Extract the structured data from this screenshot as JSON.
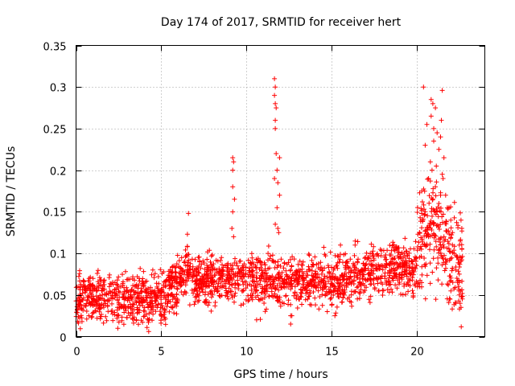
{
  "chart_data": {
    "type": "scatter",
    "title": "Day 174 of 2017, SRMTID for receiver hert",
    "xlabel": "GPS time / hours",
    "ylabel": "SRMTID / TECUs",
    "xlim": [
      0,
      24
    ],
    "ylim": [
      0,
      0.35
    ],
    "xticks": [
      0,
      5,
      10,
      15,
      20
    ],
    "xtick_labels": [
      "0",
      "5",
      "10",
      "15",
      "20"
    ],
    "yticks": [
      0,
      0.05,
      0.1,
      0.15,
      0.2,
      0.25,
      0.3,
      0.35
    ],
    "ytick_labels": [
      "0",
      "0.05",
      "0.1",
      "0.15",
      "0.2",
      "0.25",
      "0.3",
      "0.35"
    ],
    "grid": true,
    "marker": "+",
    "color": "#ff0000",
    "series": [
      {
        "name": "SRMTID",
        "background_profile": [
          [
            0.0,
            0.045
          ],
          [
            0.5,
            0.045
          ],
          [
            1.0,
            0.047
          ],
          [
            2.0,
            0.048
          ],
          [
            3.0,
            0.045
          ],
          [
            3.5,
            0.042
          ],
          [
            4.0,
            0.045
          ],
          [
            4.5,
            0.045
          ],
          [
            5.0,
            0.05
          ],
          [
            5.5,
            0.058
          ],
          [
            6.0,
            0.065
          ],
          [
            6.5,
            0.08
          ],
          [
            7.0,
            0.068
          ],
          [
            8.0,
            0.07
          ],
          [
            9.0,
            0.072
          ],
          [
            10.0,
            0.07
          ],
          [
            11.0,
            0.065
          ],
          [
            12.0,
            0.07
          ],
          [
            13.0,
            0.068
          ],
          [
            14.0,
            0.068
          ],
          [
            15.0,
            0.065
          ],
          [
            16.0,
            0.07
          ],
          [
            17.0,
            0.075
          ],
          [
            18.0,
            0.08
          ],
          [
            19.0,
            0.085
          ],
          [
            19.8,
            0.075
          ],
          [
            20.2,
            0.115
          ],
          [
            20.6,
            0.13
          ],
          [
            21.0,
            0.13
          ],
          [
            21.5,
            0.12
          ],
          [
            22.0,
            0.09
          ],
          [
            22.5,
            0.08
          ],
          [
            22.7,
            0.08
          ]
        ],
        "spread": 0.015,
        "point_count": 2200,
        "random_seed": 174,
        "notable_points": [
          [
            9.2,
            0.215
          ],
          [
            9.25,
            0.21
          ],
          [
            9.2,
            0.2
          ],
          [
            9.2,
            0.18
          ],
          [
            9.3,
            0.165
          ],
          [
            9.2,
            0.15
          ],
          [
            9.15,
            0.13
          ],
          [
            9.25,
            0.12
          ],
          [
            11.65,
            0.31
          ],
          [
            11.7,
            0.3
          ],
          [
            11.65,
            0.29
          ],
          [
            11.7,
            0.28
          ],
          [
            11.75,
            0.275
          ],
          [
            11.7,
            0.26
          ],
          [
            11.7,
            0.25
          ],
          [
            11.75,
            0.22
          ],
          [
            11.95,
            0.215
          ],
          [
            11.8,
            0.2
          ],
          [
            11.65,
            0.19
          ],
          [
            11.85,
            0.185
          ],
          [
            11.95,
            0.17
          ],
          [
            11.8,
            0.155
          ],
          [
            11.7,
            0.135
          ],
          [
            11.85,
            0.13
          ],
          [
            11.9,
            0.125
          ],
          [
            6.6,
            0.148
          ],
          [
            20.4,
            0.3
          ],
          [
            21.5,
            0.296
          ],
          [
            20.85,
            0.285
          ],
          [
            20.95,
            0.28
          ],
          [
            21.1,
            0.275
          ],
          [
            20.85,
            0.265
          ],
          [
            21.45,
            0.26
          ],
          [
            20.6,
            0.255
          ],
          [
            21.0,
            0.25
          ],
          [
            21.2,
            0.245
          ],
          [
            21.4,
            0.24
          ],
          [
            21.0,
            0.235
          ],
          [
            20.5,
            0.23
          ],
          [
            21.3,
            0.225
          ],
          [
            21.6,
            0.215
          ],
          [
            20.8,
            0.21
          ],
          [
            21.15,
            0.205
          ],
          [
            20.9,
            0.2
          ],
          [
            21.5,
            0.195
          ],
          [
            21.55,
            0.19
          ],
          [
            20.7,
            0.19
          ],
          [
            21.1,
            0.18
          ],
          [
            20.3,
            0.175
          ],
          [
            21.4,
            0.17
          ],
          [
            21.7,
            0.17
          ],
          [
            20.95,
            0.165
          ],
          [
            21.3,
            0.16
          ],
          [
            21.8,
            0.155
          ],
          [
            21.9,
            0.155
          ],
          [
            20.5,
            0.15
          ],
          [
            21.2,
            0.15
          ],
          [
            22.0,
            0.14
          ],
          [
            22.6,
            0.14
          ],
          [
            22.65,
            0.13
          ],
          [
            22.1,
            0.125
          ],
          [
            21.6,
            0.12
          ],
          [
            22.5,
            0.11
          ],
          [
            22.2,
            0.1
          ],
          [
            22.6,
            0.095
          ],
          [
            22.3,
            0.08
          ],
          [
            22.5,
            0.075
          ],
          [
            22.4,
            0.065
          ],
          [
            22.5,
            0.05
          ],
          [
            22.55,
            0.04
          ],
          [
            22.6,
            0.035
          ],
          [
            2.45,
            0.01
          ],
          [
            0.35,
            0.018
          ],
          [
            4.25,
            0.017
          ],
          [
            3.55,
            0.02
          ],
          [
            12.6,
            0.015
          ],
          [
            12.6,
            0.025
          ],
          [
            10.6,
            0.02
          ],
          [
            14.75,
            0.03
          ],
          [
            15.2,
            0.025
          ]
        ]
      }
    ]
  }
}
